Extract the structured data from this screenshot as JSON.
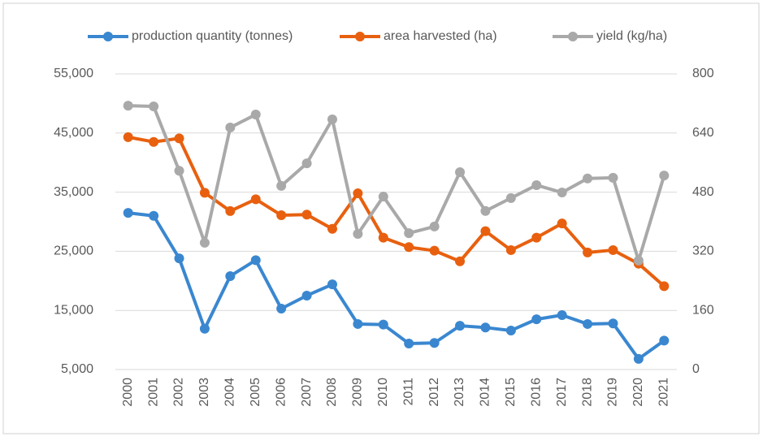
{
  "chart_data": {
    "type": "line",
    "categories": [
      "2000",
      "2001",
      "2002",
      "2003",
      "2004",
      "2005",
      "2006",
      "2007",
      "2008",
      "2009",
      "2010",
      "2011",
      "2012",
      "2013",
      "2014",
      "2015",
      "2016",
      "2017",
      "2018",
      "2019",
      "2020",
      "2021"
    ],
    "series": [
      {
        "name": "production quantity (tonnes)",
        "color": "#3a87d0",
        "values": [
          31500,
          31000,
          23800,
          11900,
          20800,
          23500,
          15300,
          17500,
          19400,
          12700,
          12600,
          9400,
          9500,
          12400,
          12100,
          11600,
          13500,
          14200,
          12700,
          12800,
          6800,
          9900
        ]
      },
      {
        "name": "area harvested (ha)",
        "color": "#e8600f",
        "values": [
          44300,
          43500,
          44100,
          34900,
          31800,
          33800,
          31100,
          31200,
          28800,
          34800,
          27300,
          25700,
          25100,
          23300,
          28400,
          25200,
          27300,
          29700,
          24800,
          25200,
          22900,
          19100
        ]
      },
      {
        "name": "yield (kg/ha)",
        "color": "#a9a9a9",
        "axis": "y2",
        "values": [
          714,
          712,
          538,
          343,
          655,
          690,
          497,
          558,
          677,
          367,
          468,
          369,
          387,
          534,
          429,
          464,
          499,
          479,
          517,
          519,
          295,
          525
        ]
      }
    ],
    "ylim": [
      5000,
      55000
    ],
    "yticks": [
      {
        "value": 5000,
        "label": "5,000"
      },
      {
        "value": 15000,
        "label": "15,000"
      },
      {
        "value": 25000,
        "label": "25,000"
      },
      {
        "value": 35000,
        "label": "35,000"
      },
      {
        "value": 45000,
        "label": "45,000"
      },
      {
        "value": 55000,
        "label": "55,000"
      }
    ],
    "y2lim": [
      0,
      800
    ],
    "y2ticks": [
      0,
      160,
      320,
      480,
      640,
      800
    ],
    "grid": true,
    "legend": "top"
  }
}
